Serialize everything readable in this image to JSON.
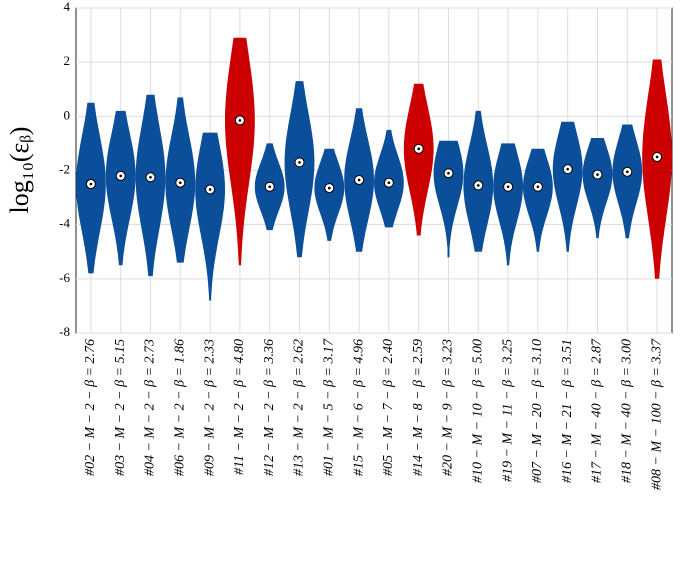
{
  "chart_data": {
    "type": "violin",
    "y_label": "log₁₀(εᵦ)",
    "categories": [
      "#02 − M − 2 − β = 2.76",
      "#03 − M − 2 − β = 5.15",
      "#04 − M − 2 − β = 2.73",
      "#06 − M − 2 − β = 1.86",
      "#09 − M − 2 − β = 2.33",
      "#11 − M − 2 − β = 4.80",
      "#12 − M − 2 − β = 3.36",
      "#13 − M − 2 − β = 2.62",
      "#01 − M − 5 − β = 3.17",
      "#15 − M − 6 − β = 4.96",
      "#05 − M − 7 − β = 2.40",
      "#14 − M − 8 − β = 2.59",
      "#20 − M − 9 − β = 3.23",
      "#10 − M − 10 − β = 5.00",
      "#19 − M − 11 − β = 3.25",
      "#07 − M − 20 − β = 3.10",
      "#16 − M − 21 − β = 3.51",
      "#17 − M − 40 − β = 2.87",
      "#18 − M − 40 − β = 3.00",
      "#08 − M − 100 − β = 3.37"
    ],
    "medians": [
      -2.5,
      -2.2,
      -2.25,
      -2.45,
      -2.7,
      -0.15,
      -2.6,
      -1.7,
      -2.65,
      -2.35,
      -2.45,
      -1.2,
      -2.1,
      -2.55,
      -2.6,
      -2.6,
      -1.95,
      -2.15,
      -2.05,
      -1.5
    ],
    "lows": [
      -5.8,
      -5.5,
      -5.9,
      -5.4,
      -6.8,
      -5.5,
      -4.2,
      -5.2,
      -4.6,
      -5.0,
      -4.1,
      -4.4,
      -5.2,
      -5.0,
      -5.5,
      -5.0,
      -5.0,
      -4.5,
      -4.5,
      -6.0
    ],
    "highs": [
      0.5,
      0.2,
      0.8,
      0.7,
      -0.6,
      2.9,
      -1.0,
      1.3,
      -1.2,
      0.3,
      -0.5,
      1.2,
      -0.9,
      0.2,
      -1.0,
      -1.2,
      -0.2,
      -0.8,
      -0.3,
      2.1
    ],
    "colors": [
      "#0b4f9a",
      "#0b4f9a",
      "#0b4f9a",
      "#0b4f9a",
      "#0b4f9a",
      "#cc0000",
      "#0b4f9a",
      "#0b4f9a",
      "#0b4f9a",
      "#0b4f9a",
      "#0b4f9a",
      "#cc0000",
      "#0b4f9a",
      "#0b4f9a",
      "#0b4f9a",
      "#0b4f9a",
      "#0b4f9a",
      "#0b4f9a",
      "#0b4f9a",
      "#cc0000"
    ],
    "ylim": [
      -8,
      4
    ],
    "yticks": [
      -8,
      -6,
      -4,
      -2,
      0,
      2,
      4
    ],
    "grid": true
  }
}
